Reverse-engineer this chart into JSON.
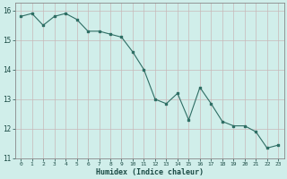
{
  "x": [
    0,
    1,
    2,
    3,
    4,
    5,
    6,
    7,
    8,
    9,
    10,
    11,
    12,
    13,
    14,
    15,
    16,
    17,
    18,
    19,
    20,
    21,
    22,
    23
  ],
  "y": [
    15.8,
    15.9,
    15.5,
    15.8,
    15.9,
    15.7,
    15.3,
    15.3,
    15.2,
    15.1,
    14.6,
    14.0,
    13.0,
    12.85,
    13.2,
    12.3,
    13.4,
    12.85,
    12.25,
    12.1,
    12.1,
    11.9,
    11.35,
    11.45
  ],
  "xlabel": "Humidex (Indice chaleur)",
  "xlim": [
    -0.5,
    23.5
  ],
  "ylim": [
    11,
    16.25
  ],
  "yticks": [
    11,
    12,
    13,
    14,
    15,
    16
  ],
  "xticks": [
    0,
    1,
    2,
    3,
    4,
    5,
    6,
    7,
    8,
    9,
    10,
    11,
    12,
    13,
    14,
    15,
    16,
    17,
    18,
    19,
    20,
    21,
    22,
    23
  ],
  "bg_color": "#d0eeea",
  "line_color": "#2e6e64",
  "grid_color_major": "#c0c0c0",
  "label_color": "#1a4a44"
}
